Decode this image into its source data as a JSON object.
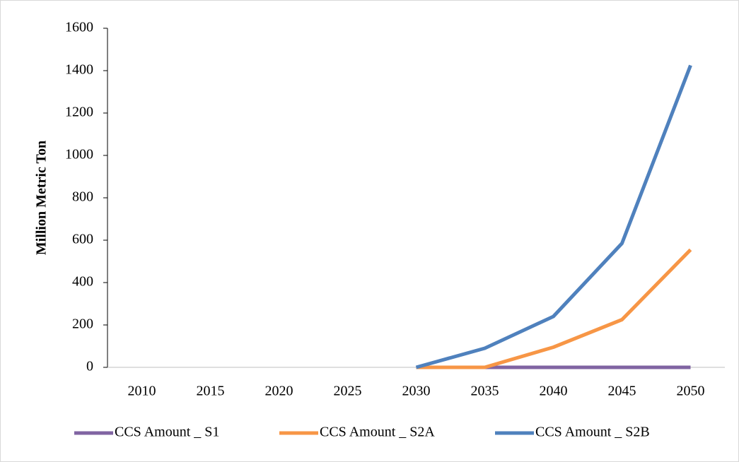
{
  "chart_data": {
    "type": "line",
    "y_label": "Million Metric Ton",
    "categories": [
      "2010",
      "2015",
      "2020",
      "2025",
      "2030",
      "2035",
      "2040",
      "2045",
      "2050"
    ],
    "series": [
      {
        "name": "CCS Amount _ S1",
        "color": "#8064a2",
        "values": [
          null,
          null,
          null,
          null,
          null,
          0,
          0,
          0,
          0
        ]
      },
      {
        "name": "CCS Amount _ S2A",
        "color": "#f79646",
        "values": [
          null,
          null,
          null,
          null,
          0,
          0,
          95,
          225,
          555
        ]
      },
      {
        "name": "CCS Amount _ S2B",
        "color": "#4f81bd",
        "values": [
          null,
          null,
          null,
          null,
          0,
          90,
          240,
          585,
          1425
        ]
      }
    ],
    "ylim": [
      0,
      1600
    ],
    "yticks": [
      0,
      200,
      400,
      600,
      800,
      1000,
      1200,
      1400,
      1600
    ],
    "legend": "bottom"
  }
}
